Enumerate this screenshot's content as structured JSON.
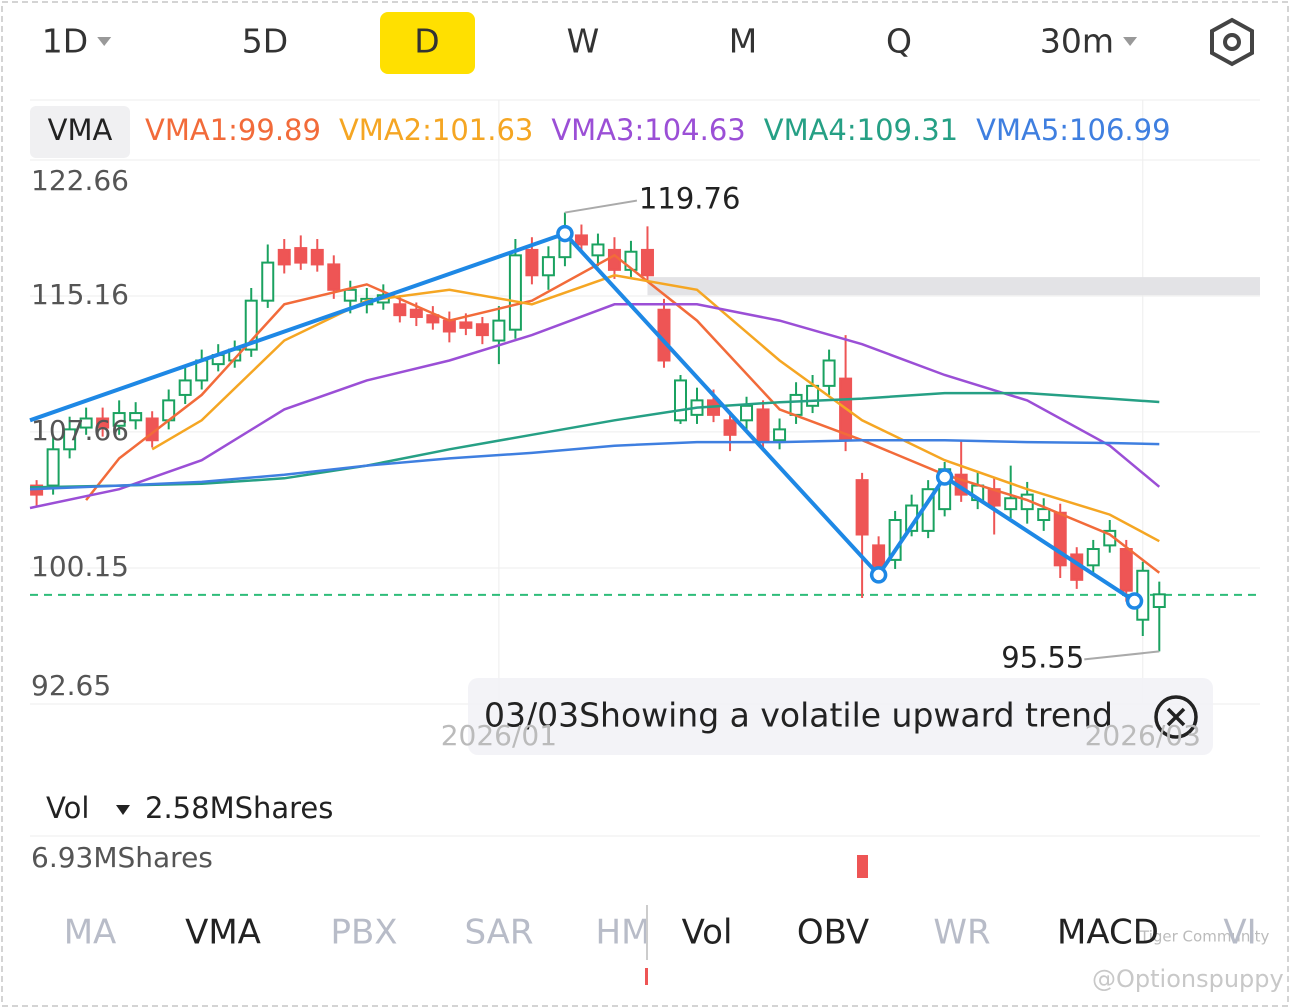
{
  "toolbar": [
    {
      "label": "1D",
      "dropdown": true
    },
    {
      "label": "5D"
    },
    {
      "label": "D",
      "selected": true
    },
    {
      "label": "W"
    },
    {
      "label": "M"
    },
    {
      "label": "Q"
    },
    {
      "label": "30m",
      "dropdown": true
    }
  ],
  "indicator_chip": "VMA",
  "chart_data": {
    "type": "candlestick",
    "up_color": "#1aa260",
    "down_color": "#ee5555",
    "grid": true,
    "ylim": [
      92.65,
      122.66
    ],
    "yticks": [
      122.66,
      115.16,
      107.66,
      100.15,
      92.65
    ],
    "xlim": [
      -0.4,
      74.1
    ],
    "xticks": [
      {
        "value": 28,
        "label": "2026/01"
      },
      {
        "value": 67,
        "label": "2026/03"
      }
    ],
    "candles": [
      [
        104.7,
        105.0,
        103.6,
        104.2
      ],
      [
        104.7,
        107.5,
        104.2,
        106.7
      ],
      [
        106.7,
        108.5,
        106.2,
        107.8
      ],
      [
        107.9,
        109.0,
        107.5,
        108.4
      ],
      [
        108.4,
        109.0,
        107.4,
        107.9
      ],
      [
        108.0,
        109.4,
        107.5,
        108.7
      ],
      [
        108.3,
        109.3,
        107.8,
        108.7
      ],
      [
        108.4,
        108.8,
        106.8,
        107.2
      ],
      [
        108.3,
        110.0,
        107.8,
        109.4
      ],
      [
        109.7,
        111.2,
        109.2,
        110.5
      ],
      [
        110.5,
        112.2,
        110.0,
        111.6
      ],
      [
        111.4,
        112.5,
        111.0,
        111.9
      ],
      [
        111.6,
        112.7,
        111.2,
        112.2
      ],
      [
        112.2,
        115.6,
        111.8,
        114.9
      ],
      [
        114.9,
        118.0,
        114.5,
        117.0
      ],
      [
        117.7,
        118.3,
        116.4,
        116.9
      ],
      [
        117.8,
        118.5,
        116.6,
        117.0
      ],
      [
        117.7,
        118.3,
        116.5,
        116.9
      ],
      [
        116.9,
        117.4,
        115.0,
        115.5
      ],
      [
        114.9,
        116.0,
        114.2,
        115.5
      ],
      [
        114.7,
        115.6,
        114.2,
        115.0
      ],
      [
        114.8,
        115.8,
        114.4,
        115.2
      ],
      [
        114.7,
        115.2,
        113.7,
        114.1
      ],
      [
        114.4,
        114.8,
        113.5,
        114.0
      ],
      [
        114.1,
        114.6,
        113.3,
        113.7
      ],
      [
        113.8,
        114.3,
        112.6,
        113.2
      ],
      [
        113.7,
        114.2,
        113.0,
        113.4
      ],
      [
        113.6,
        114.0,
        112.5,
        113.0
      ],
      [
        112.7,
        114.6,
        111.4,
        113.8
      ],
      [
        113.3,
        118.3,
        112.8,
        117.4
      ],
      [
        117.7,
        118.4,
        115.8,
        116.3
      ],
      [
        116.3,
        117.9,
        115.5,
        117.3
      ],
      [
        117.3,
        119.76,
        116.8,
        118.5
      ],
      [
        118.5,
        119.1,
        117.5,
        118.0
      ],
      [
        117.4,
        118.6,
        116.8,
        118.0
      ],
      [
        117.7,
        118.4,
        116.1,
        116.6
      ],
      [
        116.6,
        118.2,
        116.1,
        117.6
      ],
      [
        117.7,
        119.0,
        115.9,
        116.3
      ],
      [
        114.4,
        115.0,
        111.2,
        111.6
      ],
      [
        108.3,
        110.8,
        108.1,
        110.5
      ],
      [
        108.6,
        110.1,
        108.1,
        109.4
      ],
      [
        109.4,
        110.0,
        108.2,
        108.6
      ],
      [
        108.3,
        108.8,
        106.6,
        107.5
      ],
      [
        108.3,
        109.6,
        107.8,
        109.1
      ],
      [
        108.9,
        109.4,
        106.8,
        107.2
      ],
      [
        107.2,
        108.4,
        106.7,
        107.8
      ],
      [
        108.6,
        110.4,
        108.1,
        109.7
      ],
      [
        109.1,
        110.8,
        108.7,
        110.2
      ],
      [
        110.2,
        112.2,
        109.7,
        111.6
      ],
      [
        110.6,
        113.0,
        106.6,
        107.2
      ],
      [
        105.0,
        105.4,
        98.5,
        102.0
      ],
      [
        101.4,
        101.9,
        99.5,
        100.0
      ],
      [
        100.6,
        103.3,
        100.1,
        102.8
      ],
      [
        102.2,
        104.2,
        101.9,
        103.6
      ],
      [
        102.2,
        105.0,
        101.8,
        104.5
      ],
      [
        103.4,
        106.0,
        103.0,
        105.6
      ],
      [
        105.3,
        107.2,
        103.8,
        104.2
      ],
      [
        103.9,
        105.5,
        103.4,
        104.7
      ],
      [
        104.5,
        105.1,
        102.0,
        103.6
      ],
      [
        103.4,
        105.8,
        102.9,
        104.0
      ],
      [
        103.4,
        104.9,
        102.6,
        104.2
      ],
      [
        102.8,
        104.0,
        102.2,
        103.4
      ],
      [
        103.2,
        103.7,
        99.6,
        100.3
      ],
      [
        100.9,
        101.3,
        99.0,
        99.5
      ],
      [
        100.3,
        101.7,
        99.8,
        101.2
      ],
      [
        101.4,
        102.8,
        101.0,
        102.2
      ],
      [
        101.2,
        101.7,
        98.3,
        98.9
      ],
      [
        97.3,
        100.5,
        96.4,
        100.0
      ],
      [
        98.0,
        99.4,
        95.55,
        98.7
      ]
    ],
    "series": [
      {
        "name": "VMA1:99.89",
        "color": "#f26b3a",
        "x": [
          3,
          5,
          10,
          15,
          20,
          25,
          30,
          35,
          40,
          45,
          50,
          55,
          60,
          65,
          68
        ],
        "values": [
          103.9,
          106.2,
          109.7,
          114.7,
          115.8,
          113.8,
          114.9,
          117.4,
          113.8,
          108.9,
          107.2,
          105.3,
          103.9,
          102.0,
          99.89
        ]
      },
      {
        "name": "VMA2:101.63",
        "color": "#f5a623",
        "x": [
          7,
          10,
          15,
          20,
          25,
          30,
          35,
          40,
          45,
          50,
          55,
          60,
          65,
          68
        ],
        "values": [
          106.7,
          108.3,
          112.7,
          114.9,
          115.5,
          114.7,
          116.3,
          115.5,
          111.6,
          108.3,
          106.1,
          104.5,
          103.1,
          101.63
        ]
      },
      {
        "name": "VMA3:104.63",
        "color": "#9b4fd6",
        "x": [
          -0.4,
          5,
          10,
          15,
          20,
          25,
          30,
          35,
          40,
          45,
          50,
          55,
          60,
          65,
          68
        ],
        "values": [
          103.46,
          104.5,
          106.1,
          108.9,
          110.5,
          111.6,
          113.0,
          114.7,
          114.7,
          113.8,
          112.5,
          110.8,
          109.4,
          106.9,
          104.63
        ]
      },
      {
        "name": "VMA4:109.31",
        "color": "#26a085",
        "x": [
          -0.4,
          5,
          10,
          15,
          20,
          25,
          30,
          35,
          40,
          45,
          50,
          55,
          60,
          65,
          68
        ],
        "values": [
          104.6,
          104.7,
          104.8,
          105.1,
          105.8,
          106.7,
          107.5,
          108.3,
          109.0,
          109.3,
          109.5,
          109.8,
          109.8,
          109.5,
          109.31
        ]
      },
      {
        "name": "VMA5:106.99",
        "color": "#3f7fe0",
        "x": [
          -0.4,
          5,
          10,
          15,
          20,
          25,
          30,
          35,
          40,
          45,
          50,
          55,
          60,
          65,
          68
        ],
        "values": [
          104.5,
          104.7,
          104.9,
          105.3,
          105.8,
          106.2,
          106.5,
          106.9,
          107.1,
          107.1,
          107.2,
          107.2,
          107.1,
          107.05,
          106.99
        ]
      }
    ],
    "trend": {
      "color": "#1e88e5",
      "x": [
        -0.4,
        32,
        51,
        55,
        66.5
      ],
      "values": [
        108.3,
        118.6,
        99.77,
        105.17,
        98.33
      ]
    },
    "annotations": [
      {
        "x": 32,
        "value": 119.76
      },
      {
        "x": 68,
        "value": 95.55
      }
    ],
    "zone": {
      "start": 37,
      "low": 115.2,
      "high": 116.2
    },
    "reference_line": 98.67
  },
  "tooltip": "03/03Showing a volatile upward trend",
  "volume": {
    "label": "Vol",
    "value_label": "2.58MShares",
    "max_label": "6.93MShares"
  },
  "indicator_tabs": [
    {
      "label": "MA"
    },
    {
      "label": "VMA",
      "active": true
    },
    {
      "label": "PBX"
    },
    {
      "label": "SAR"
    },
    {
      "label": "HM"
    },
    {
      "label": "Vol",
      "active": true
    },
    {
      "label": "OBV",
      "active": true
    },
    {
      "label": "WR"
    },
    {
      "label": "MACD",
      "active": true
    },
    {
      "label": "VI"
    }
  ],
  "watermark": [
    "Tiger Community",
    "@Optionspuppy"
  ]
}
